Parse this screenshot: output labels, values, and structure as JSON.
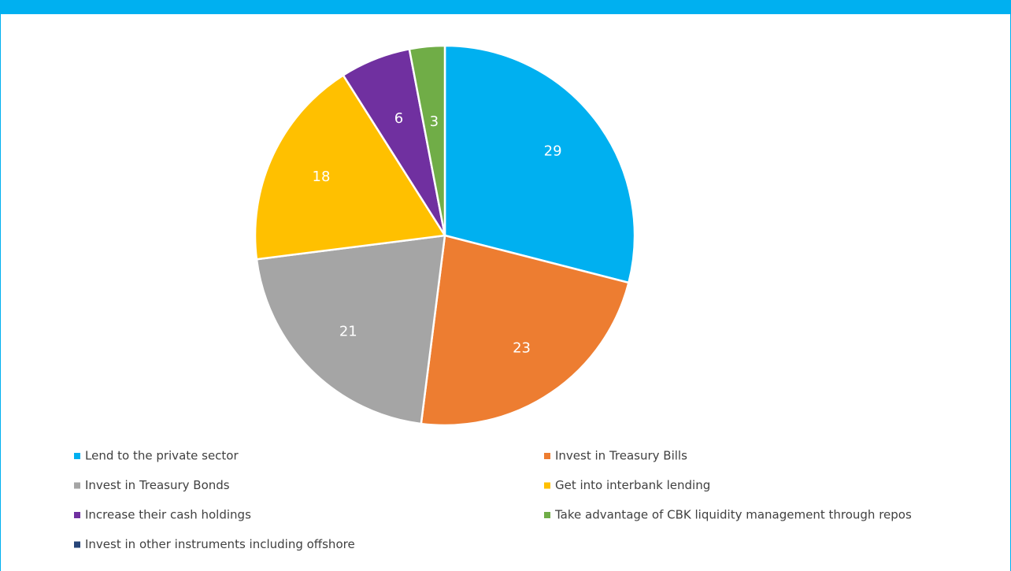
{
  "chart_data": {
    "type": "pie",
    "categories": [
      "Lend to the private sector",
      "Invest in Treasury Bills",
      "Invest in Treasury Bonds",
      "Get into interbank lending",
      "Increase their cash holdings",
      "Take advantage of CBK liquidity management through repos",
      "Invest in other instruments including offshore"
    ],
    "values": [
      29,
      23,
      21,
      18,
      6,
      3,
      0
    ],
    "colors": [
      "#00b0f0",
      "#ed7d31",
      "#a5a5a5",
      "#ffc000",
      "#7030a0",
      "#70ad47",
      "#264478"
    ],
    "legend": "bottom"
  }
}
